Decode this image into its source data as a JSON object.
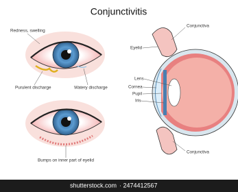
{
  "title": "Conjunctivitis",
  "labels": {
    "redness": "Redness, swelling",
    "purulent": "Purulent discharge",
    "watery": "Watery discharge",
    "bumps": "Bumps on inner part of eyelid",
    "conjunctiva_top": "Conjunctiva",
    "eyelid": "Eyelid",
    "lens": "Lens",
    "cornea": "Cornea",
    "pupil": "Pupil",
    "iris": "Iris",
    "conjunctiva_bottom": "Conjunctiva"
  },
  "watermark": {
    "site": "shutterstock.com",
    "id": "· 2474412567"
  }
}
